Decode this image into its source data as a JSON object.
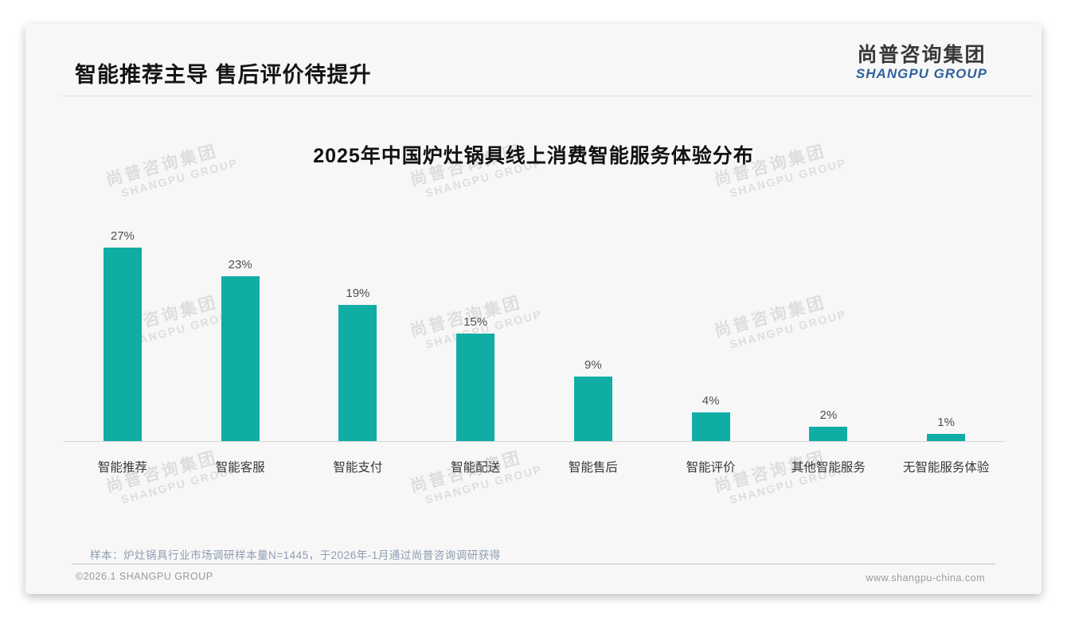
{
  "header": {
    "title": "智能推荐主导 售后评价待提升"
  },
  "logo": {
    "name_cn": "尚普咨询集团",
    "name_en": "SHANGPU GROUP"
  },
  "watermark": {
    "line1": "尚普咨询集团",
    "line2": "SHANGPU GROUP"
  },
  "chart_data": {
    "type": "bar",
    "title": "2025年中国炉灶锅具线上消费智能服务体验分布",
    "categories": [
      "智能推荐",
      "智能客服",
      "智能支付",
      "智能配送",
      "智能售后",
      "智能评价",
      "其他智能服务",
      "无智能服务体验"
    ],
    "values": [
      27,
      23,
      19,
      15,
      9,
      4,
      2,
      1
    ],
    "unit": "%",
    "ylim": [
      0,
      30
    ],
    "grid": false,
    "legend": false,
    "data_labels": true,
    "bar_color": "#10ADA5",
    "axis_line_color": "#d7d7d7"
  },
  "note": {
    "text": "样本：炉灶锅具行业市场调研样本量N=1445，于2026年-1月通过尚普咨询调研获得"
  },
  "footer": {
    "copyright": "©2026.1 SHANGPU GROUP",
    "website": "www.shangpu-china.com"
  },
  "colors": {
    "accent_teal": "#10ADA5",
    "logo_blue": "#2F639C",
    "note_blue_gray": "#8E9DB1"
  }
}
